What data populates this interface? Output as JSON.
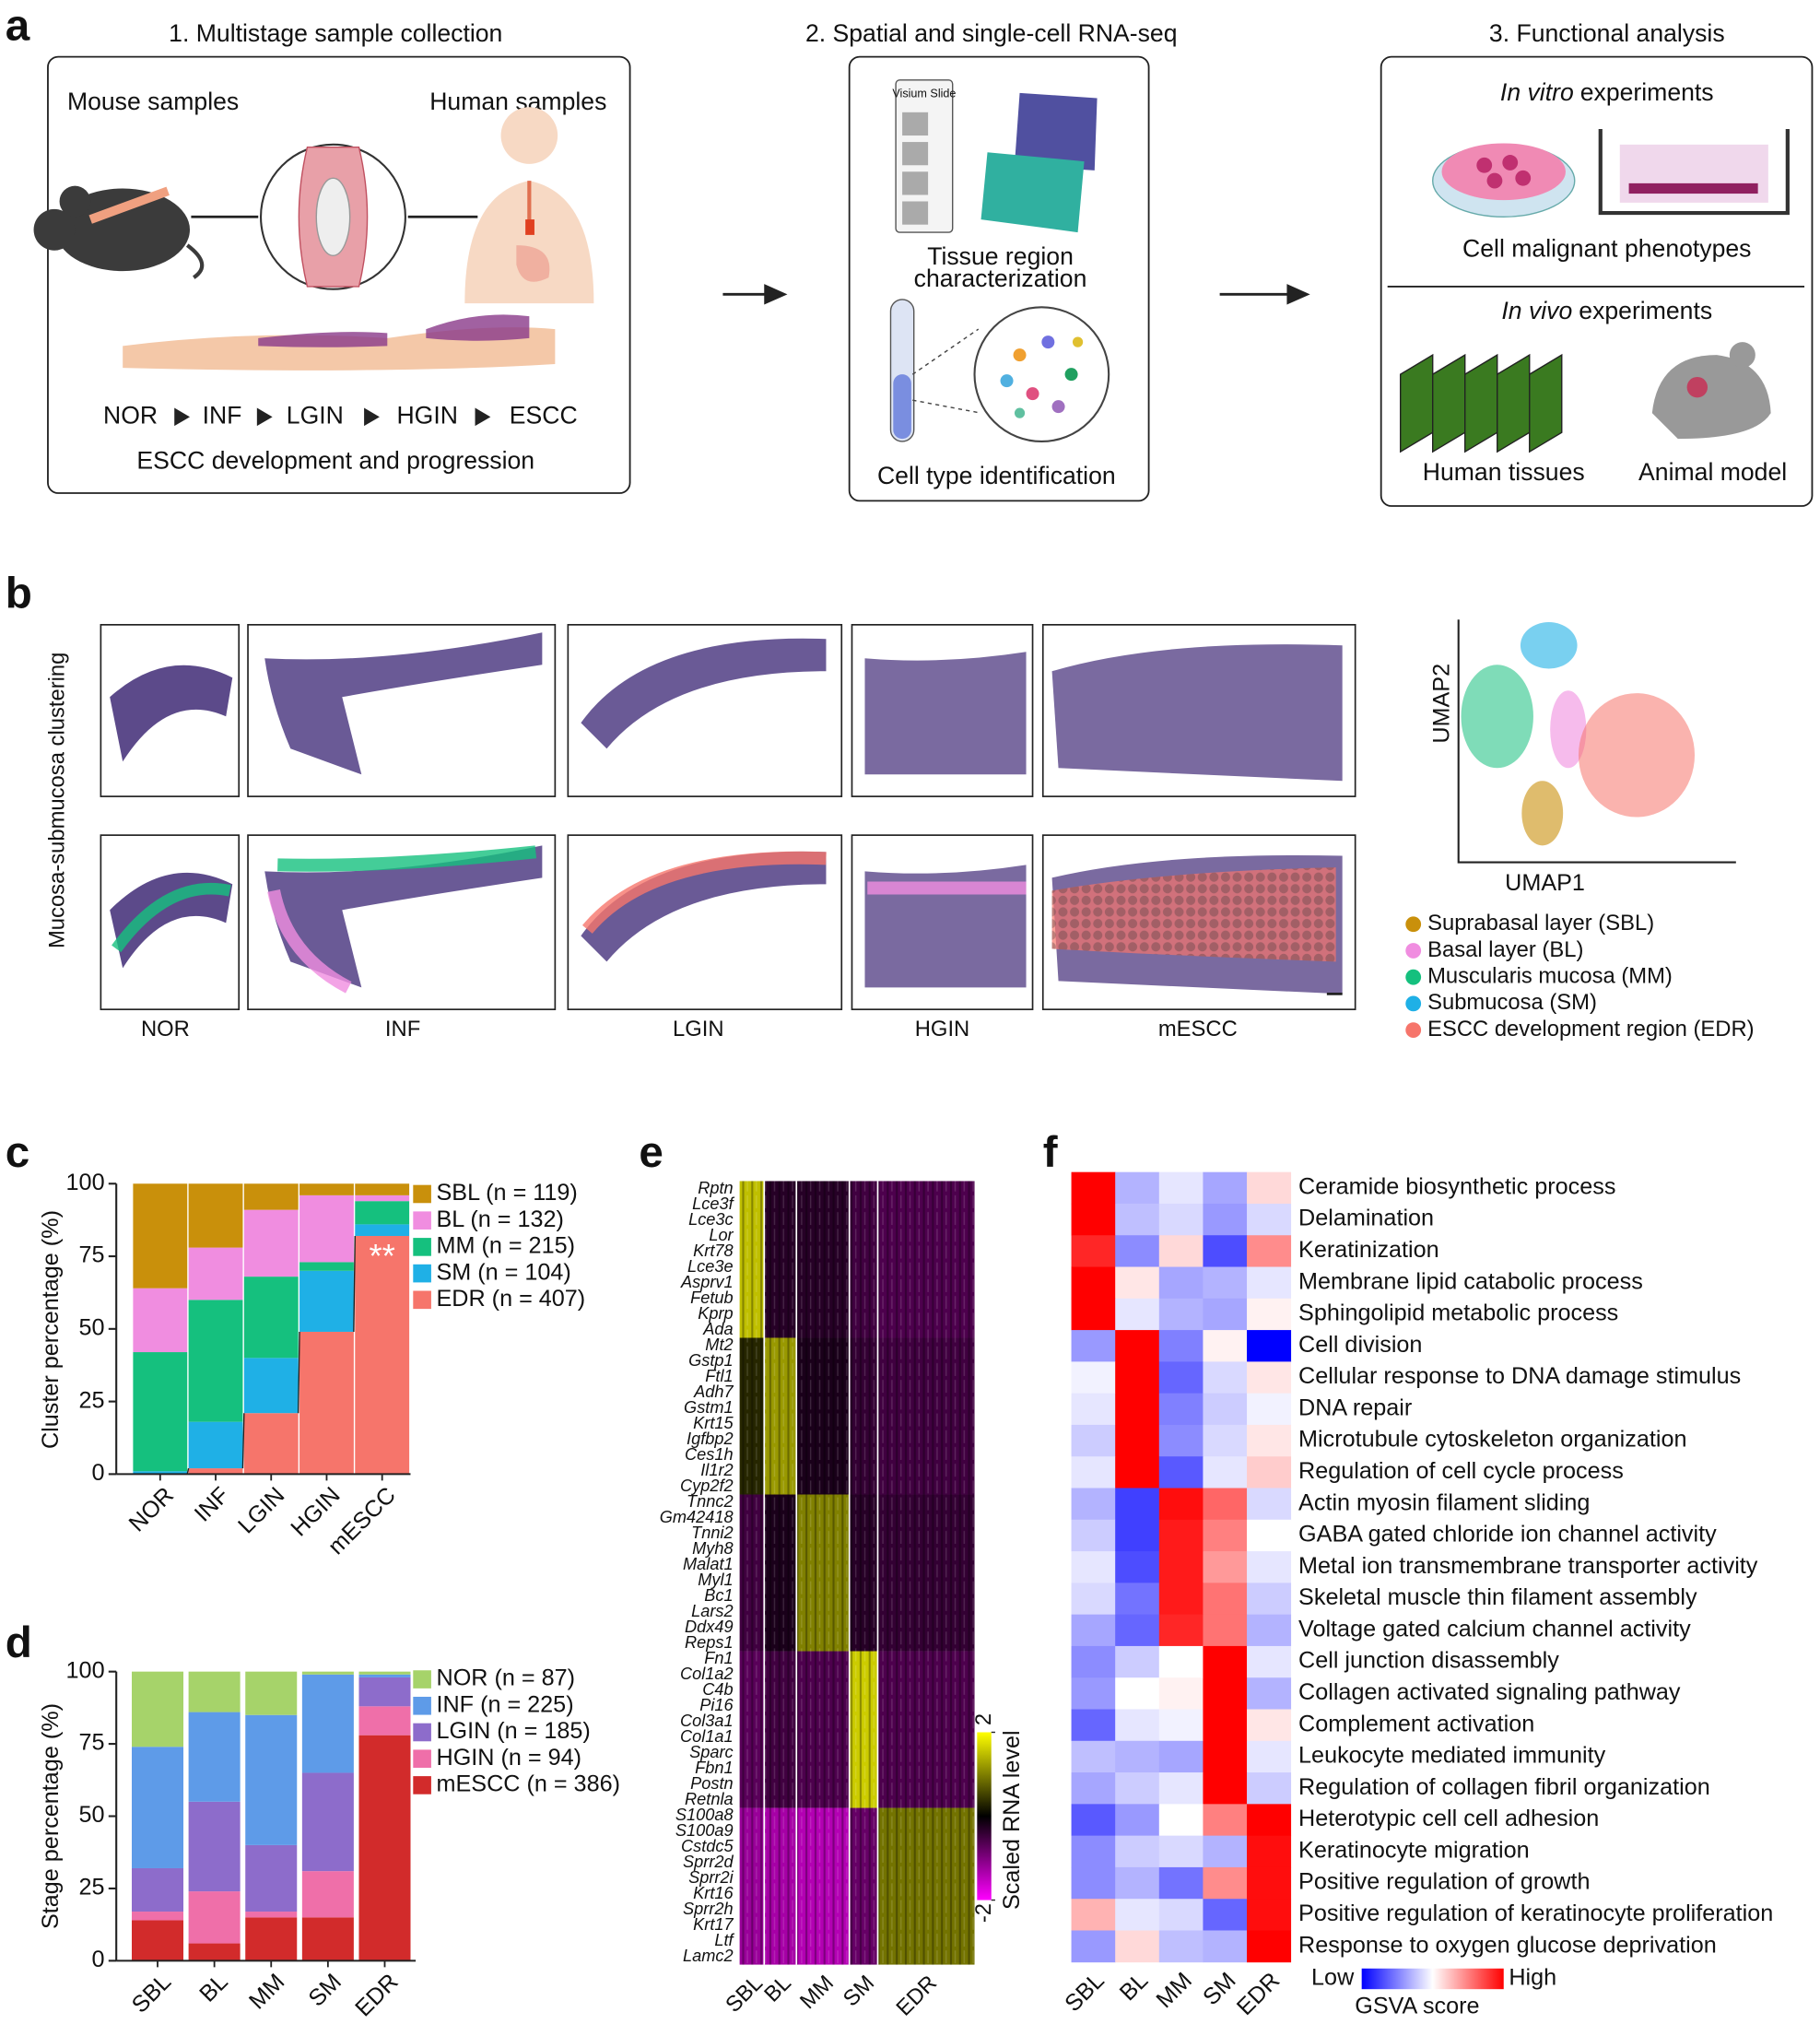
{
  "panel_a": {
    "label": "a",
    "step1": {
      "title": "1. Multistage sample collection",
      "mouse": "Mouse samples",
      "human": "Human samples",
      "stages": [
        "NOR",
        "INF",
        "LGIN",
        "HGIN",
        "ESCC"
      ],
      "caption": "ESCC development and progression"
    },
    "step2": {
      "title": "2. Spatial and single-cell RNA-seq",
      "slide": "Visium Slide",
      "tissue": [
        "Tissue region",
        "characterization"
      ],
      "cell": "Cell type identification"
    },
    "step3": {
      "title": "3. Functional analysis",
      "invitro": {
        "italic": "In vitro",
        "rest": "experiments"
      },
      "phenotypes": "Cell malignant phenotypes",
      "invivo": {
        "italic": "In vivo",
        "rest": "experiments"
      },
      "human": "Human tissues",
      "animal": "Animal model"
    }
  },
  "panel_b": {
    "label": "b",
    "ylabel": "Mucosa-submucosa clustering",
    "stages": [
      "NOR",
      "INF",
      "LGIN",
      "HGIN",
      "mESCC"
    ],
    "umap_x": "UMAP1",
    "umap_y": "UMAP2",
    "legend": [
      "Suprabasal layer (SBL)",
      "Basal layer (BL)",
      "Muscularis mucosa (MM)",
      "Submucosa (SM)",
      "ESCC development region (EDR)"
    ],
    "legend_colors": [
      "#c9900b",
      "#f08de0",
      "#15c07e",
      "#1fb0e6",
      "#f6756b"
    ]
  },
  "chart_data": [
    {
      "type": "bar",
      "stacked": true,
      "label": "c",
      "ylabel": "Cluster percentage (%)",
      "categories": [
        "NOR",
        "INF",
        "LGIN",
        "HGIN",
        "mESCC"
      ],
      "series": [
        {
          "name": "EDR (n = 407)",
          "color": "#f6756b",
          "values": [
            0,
            2,
            21,
            49,
            82
          ]
        },
        {
          "name": "SM (n = 104)",
          "color": "#1fb0e6",
          "values": [
            1,
            16,
            19,
            21,
            4
          ]
        },
        {
          "name": "MM (n = 215)",
          "color": "#15c07e",
          "values": [
            41,
            42,
            28,
            3,
            8
          ]
        },
        {
          "name": "BL (n = 132)",
          "color": "#f08de0",
          "values": [
            22,
            18,
            23,
            23,
            2
          ]
        },
        {
          "name": "SBL (n = 119)",
          "color": "#c9900b",
          "values": [
            36,
            22,
            9,
            4,
            4
          ]
        }
      ],
      "ylim": [
        0,
        100
      ],
      "yticks": [
        0,
        25,
        50,
        75,
        100
      ],
      "connectors": true,
      "annotation": {
        "text": "**",
        "category": "mESCC"
      }
    },
    {
      "type": "bar",
      "stacked": true,
      "label": "d",
      "ylabel": "Stage percentage (%)",
      "categories": [
        "SBL",
        "BL",
        "MM",
        "SM",
        "EDR"
      ],
      "series": [
        {
          "name": "mESCC (n = 386)",
          "color": "#d22b2b",
          "values": [
            14,
            6,
            15,
            15,
            78
          ]
        },
        {
          "name": "HGIN (n = 94)",
          "color": "#ef6fa9",
          "values": [
            3,
            18,
            2,
            16,
            10
          ]
        },
        {
          "name": "LGIN (n = 185)",
          "color": "#8d6ccb",
          "values": [
            15,
            31,
            23,
            34,
            10
          ]
        },
        {
          "name": "INF (n = 225)",
          "color": "#5e9be8",
          "values": [
            42,
            31,
            45,
            34,
            1
          ]
        },
        {
          "name": "NOR (n = 87)",
          "color": "#a6d36a",
          "values": [
            26,
            14,
            15,
            1,
            1
          ]
        }
      ],
      "ylim": [
        0,
        100
      ],
      "yticks": [
        0,
        25,
        50,
        75,
        100
      ],
      "connectors": false
    },
    {
      "type": "heatmap",
      "label": "e",
      "colormap": "magenta-black-yellow",
      "genes": [
        "Rptn",
        "Lce3f",
        "Lce3c",
        "Lor",
        "Krt78",
        "Lce3e",
        "Asprv1",
        "Fetub",
        "Kprp",
        "Ada",
        "Mt2",
        "Gstp1",
        "Ftl1",
        "Adh7",
        "Gstm1",
        "Krt15",
        "Igfbp2",
        "Ces1h",
        "Il1r2",
        "Cyp2f2",
        "Tnnc2",
        "Gm42418",
        "Tnni2",
        "Myh8",
        "Malat1",
        "Myl1",
        "Bc1",
        "Lars2",
        "Ddx49",
        "Reps1",
        "Fn1",
        "Col1a2",
        "C4b",
        "Pi16",
        "Col3a1",
        "Col1a1",
        "Sparc",
        "Fbn1",
        "Postn",
        "Retnla",
        "S100a8",
        "S100a9",
        "Cstdc5",
        "Sprr2d",
        "Sprr2i",
        "Krt16",
        "Sprr2h",
        "Krt17",
        "Ltf",
        "Lamc2"
      ],
      "columns": [
        "SBL",
        "BL",
        "MM",
        "SM",
        "EDR"
      ],
      "values": [
        [
          1.5,
          -0.3,
          -0.3,
          -0.5,
          -0.6
        ],
        [
          0.3,
          1.2,
          -0.2,
          -0.4,
          -0.5
        ],
        [
          -0.5,
          -0.2,
          1.0,
          -0.3,
          -0.4
        ],
        [
          -0.7,
          -0.5,
          -0.6,
          1.6,
          -0.6
        ],
        [
          -1.2,
          -1.3,
          -1.4,
          -0.8,
          0.9
        ]
      ],
      "clim": [
        -2,
        2
      ],
      "cticks": [
        2,
        -2
      ],
      "colorbar_label": "Scaled RNA level"
    },
    {
      "type": "heatmap",
      "label": "f",
      "colormap": "blue-white-red",
      "rows": [
        "Ceramide biosynthetic process",
        "Delamination",
        "Keratinization",
        "Membrane lipid catabolic process",
        "Sphingolipid metabolic process",
        "Cell division",
        "Cellular response to DNA damage stimulus",
        "DNA repair",
        "Microtubule cytoskeleton organization",
        "Regulation of cell cycle process",
        "Actin myosin filament sliding",
        "GABA gated chloride ion channel activity",
        "Metal ion transmembrane transporter activity",
        "Skeletal muscle thin filament assembly",
        "Voltage gated calcium channel activity",
        "Cell junction disassembly",
        "Collagen activated signaling pathway",
        "Complement activation",
        "Leukocyte mediated immunity",
        "Regulation of collagen fibril organization",
        "Heterotypic cell cell adhesion",
        "Keratinocyte migration",
        "Positive regulation of growth",
        "Positive regulation of keratinocyte proliferation",
        "Response to oxygen glucose deprivation"
      ],
      "columns": [
        "SBL",
        "BL",
        "MM",
        "SM",
        "EDR"
      ],
      "values": [
        [
          1,
          -0.3,
          -0.1,
          -0.35,
          0.15
        ],
        [
          1,
          -0.25,
          -0.15,
          -0.4,
          -0.15
        ],
        [
          0.85,
          -0.45,
          0.15,
          -0.7,
          0.45
        ],
        [
          1,
          0.1,
          -0.35,
          -0.3,
          -0.1
        ],
        [
          1,
          -0.1,
          -0.3,
          -0.35,
          0.05
        ],
        [
          -0.4,
          1,
          -0.5,
          0.05,
          -1
        ],
        [
          -0.05,
          1,
          -0.6,
          -0.15,
          0.1
        ],
        [
          -0.1,
          1,
          -0.5,
          -0.2,
          -0.05
        ],
        [
          -0.2,
          1,
          -0.45,
          -0.15,
          0.1
        ],
        [
          -0.1,
          1,
          -0.65,
          -0.1,
          0.2
        ],
        [
          -0.3,
          -0.75,
          0.95,
          0.6,
          -0.15
        ],
        [
          -0.2,
          -0.75,
          0.9,
          0.5,
          0
        ],
        [
          -0.1,
          -0.7,
          0.9,
          0.4,
          -0.1
        ],
        [
          -0.15,
          -0.55,
          0.9,
          0.55,
          -0.2
        ],
        [
          -0.35,
          -0.6,
          0.85,
          0.55,
          -0.3
        ],
        [
          -0.45,
          -0.2,
          0,
          1,
          -0.1
        ],
        [
          -0.4,
          0,
          0.05,
          1,
          -0.3
        ],
        [
          -0.6,
          -0.1,
          -0.05,
          1,
          0.1
        ],
        [
          -0.25,
          -0.3,
          -0.35,
          1,
          -0.1
        ],
        [
          -0.35,
          -0.2,
          -0.1,
          1,
          -0.2
        ],
        [
          -0.65,
          -0.4,
          0,
          0.5,
          1
        ],
        [
          -0.45,
          -0.2,
          -0.15,
          -0.3,
          0.95
        ],
        [
          -0.45,
          -0.3,
          -0.55,
          0.45,
          0.95
        ],
        [
          0.3,
          -0.1,
          -0.15,
          -0.6,
          0.95
        ],
        [
          -0.4,
          0.15,
          -0.25,
          -0.3,
          1
        ]
      ],
      "clim": [
        -1,
        1
      ],
      "colorbar": {
        "low": "Low",
        "high": "High",
        "title": "GSVA score"
      }
    }
  ]
}
